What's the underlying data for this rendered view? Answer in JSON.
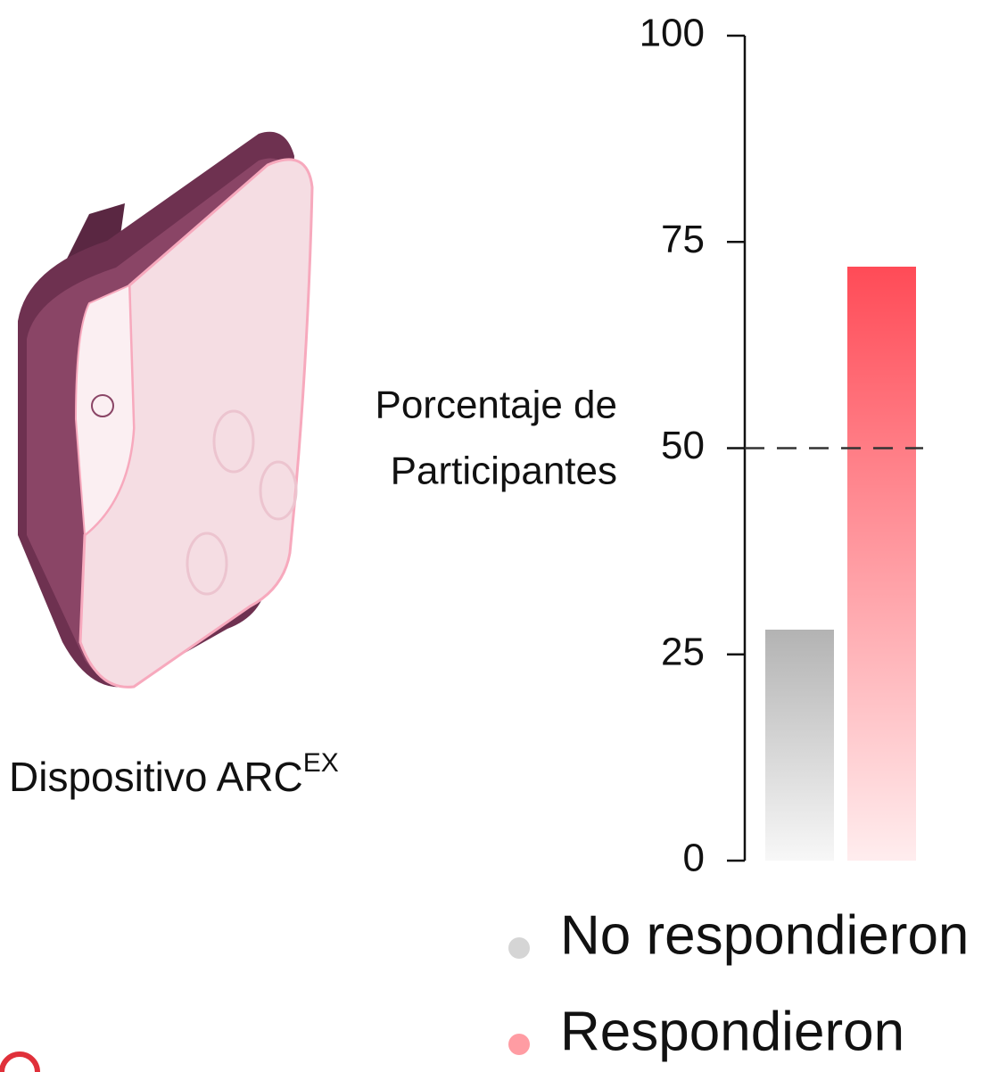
{
  "device": {
    "caption": "Dispositivo ARC",
    "superscript": "EX"
  },
  "chart_data": {
    "type": "bar",
    "ylabel_lines": [
      "Porcentaje de",
      "Participantes"
    ],
    "categories": [
      null
    ],
    "series": [
      {
        "name": "No respondieron",
        "color": "#b3b3b3",
        "values": [
          28
        ]
      },
      {
        "name": "Respondieron",
        "color": "#ff4b57",
        "values": [
          72
        ]
      }
    ],
    "ylim": [
      0,
      100
    ],
    "yticks": [
      0,
      25,
      50,
      75,
      100
    ],
    "reference_line": 50,
    "gradient": true
  }
}
